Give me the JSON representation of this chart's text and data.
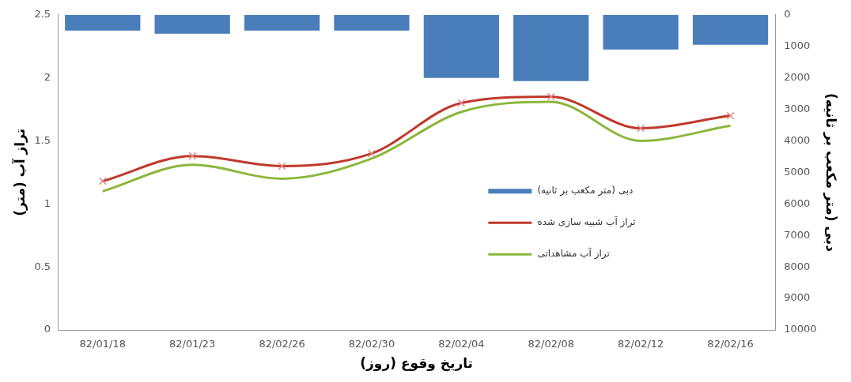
{
  "chart_data": {
    "type": "line",
    "xlabel": "تاریخ وقوع (روز)",
    "ylabel": "تراز آب (متر)",
    "y2label": "دبی (متر مکعب بر ثانیه)",
    "categories": [
      "82/01/18",
      "82/01/23",
      "82/02/26",
      "82/02/30",
      "82/02/04",
      "82/02/08",
      "82/02/12",
      "82/02/16"
    ],
    "series": [
      {
        "type": "bar",
        "axis": "y2",
        "name": "دبی (متر مکعب بر ثانیه)",
        "color": "#4a7ebb",
        "values": [
          500,
          600,
          500,
          500,
          2000,
          2100,
          1100,
          950
        ]
      },
      {
        "name": "تراز آب شبیه سازی شده",
        "color": "#c0392b",
        "marker": "cross",
        "values": [
          1.18,
          1.38,
          1.3,
          1.4,
          1.8,
          1.85,
          1.6,
          1.7
        ]
      },
      {
        "name": "تراز آب مشاهداتی",
        "color": "#8cb63c",
        "marker": "none",
        "values": [
          1.1,
          1.31,
          1.2,
          1.36,
          1.73,
          1.81,
          1.5,
          1.62
        ]
      }
    ],
    "ylim": [
      0,
      2.5
    ],
    "yticks": [
      0,
      0.5,
      1,
      1.5,
      2,
      2.5
    ],
    "y2lim": [
      10000,
      0
    ],
    "y2ticks": [
      0,
      1000,
      2000,
      3000,
      4000,
      5000,
      6000,
      7000,
      8000,
      9000,
      10000
    ],
    "legend": "right",
    "grid": false
  }
}
